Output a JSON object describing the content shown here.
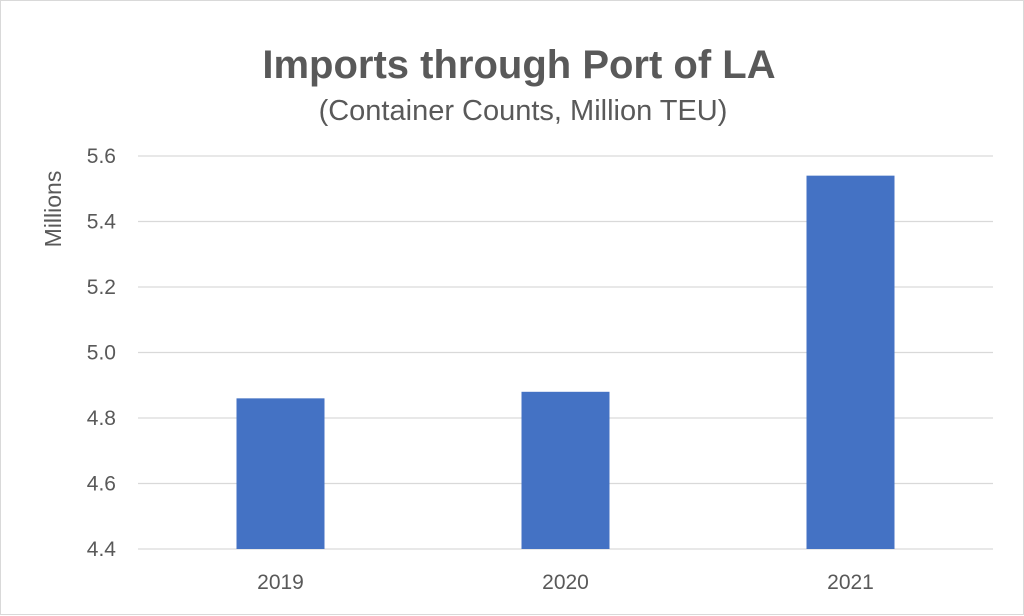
{
  "chart_data": {
    "type": "bar",
    "title": "Imports through Port of LA",
    "subtitle": "(Container Counts, Million TEU)",
    "xlabel": "",
    "ylabel": "Millions",
    "categories": [
      "2019",
      "2020",
      "2021"
    ],
    "values": [
      4.86,
      4.88,
      5.54
    ],
    "ylim": [
      4.4,
      5.6
    ],
    "yticks": [
      "4.4",
      "4.6",
      "4.8",
      "5.0",
      "5.2",
      "5.4",
      "5.6"
    ],
    "bar_color": "#4472c4",
    "grid": true,
    "legend": "none"
  }
}
